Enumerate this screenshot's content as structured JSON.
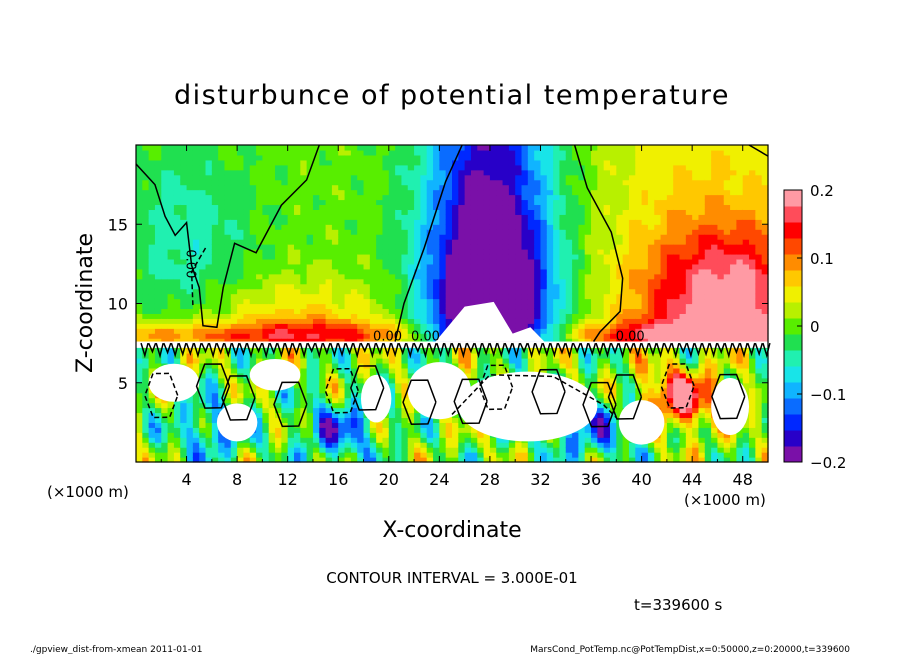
{
  "chart_data": {
    "type": "heatmap",
    "title": "disturbunce of potential temperature",
    "xlabel": "X-coordinate",
    "ylabel": "Z-coordinate",
    "x_unit": "(×1000 m)",
    "y_unit": "(×1000 m)",
    "xlim": [
      0,
      50
    ],
    "ylim": [
      0,
      20
    ],
    "x_ticks": [
      4,
      8,
      12,
      16,
      20,
      24,
      28,
      32,
      36,
      40,
      44,
      48
    ],
    "y_ticks": [
      5,
      10,
      15
    ],
    "colorbar": {
      "min": -0.2,
      "max": 0.2,
      "ticks": [
        0.2,
        0.1,
        0,
        -0.1,
        -0.2
      ],
      "tick_labels": [
        "0.2",
        "0.1",
        "0",
        "−0.1",
        "−0.2"
      ],
      "colors": [
        "#7a10a8",
        "#2800c8",
        "#0028ff",
        "#0a6cff",
        "#10b4ff",
        "#18e4e8",
        "#20f0b0",
        "#20e050",
        "#58ee00",
        "#b8f000",
        "#f0f000",
        "#ffc800",
        "#ff8c00",
        "#ff4800",
        "#ff0000",
        "#ff4c5a",
        "#ff9aa4"
      ]
    },
    "contour_labels": [
      "0.00",
      "0.00",
      "0.00",
      "0.00"
    ],
    "contour_interval_text": "CONTOUR INTERVAL = 3.000E-01",
    "time_text": "t=339600 s",
    "footer_left": "./gpview_dist-from-xmean  2011-01-01",
    "footer_right": "MarsCond_PotTemp.nc@PotTempDist,x=0:50000,z=0:20000,t=339600"
  }
}
